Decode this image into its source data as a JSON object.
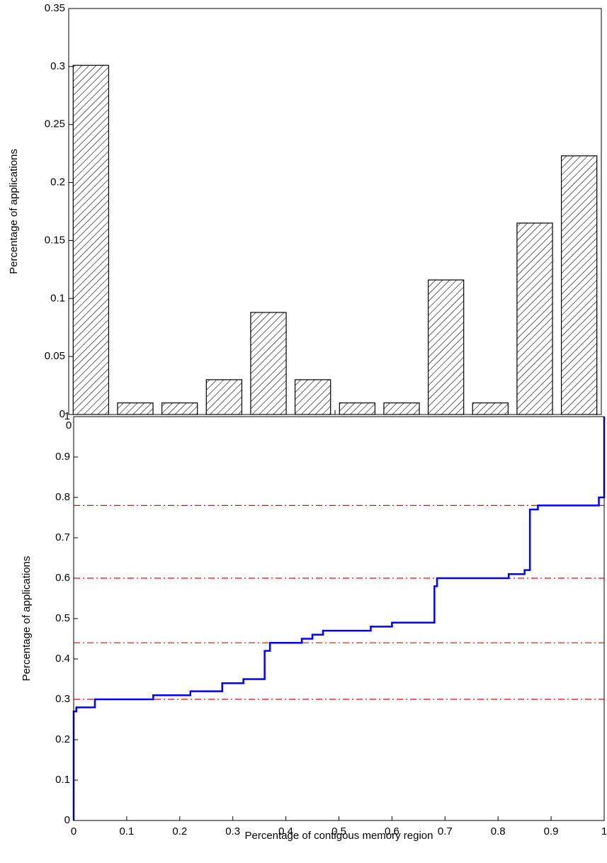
{
  "chart_data": [
    {
      "type": "bar",
      "x": [
        0.0417,
        0.125,
        0.2083,
        0.2917,
        0.375,
        0.4583,
        0.5417,
        0.625,
        0.7083,
        0.7917,
        0.875,
        0.9583
      ],
      "values": [
        0.301,
        0.01,
        0.01,
        0.03,
        0.088,
        0.03,
        0.01,
        0.01,
        0.116,
        0.01,
        0.165,
        0.223
      ],
      "color": "#000000",
      "xlabel": "Percentage of contigous memory region",
      "ylabel": "Percentage of applications",
      "xlim": [
        0,
        1
      ],
      "xticks": [
        0,
        0.1,
        0.2,
        0.3,
        0.4,
        0.5,
        0.6,
        0.7,
        0.8,
        0.9,
        1
      ],
      "ylim": [
        0,
        0.35
      ],
      "yticks": [
        0,
        0.05,
        0.1,
        0.15,
        0.2,
        0.25,
        0.3,
        0.35
      ],
      "grid": false
    },
    {
      "type": "step",
      "x": [
        0,
        0.005,
        0.04,
        0.15,
        0.22,
        0.28,
        0.32,
        0.36,
        0.37,
        0.43,
        0.45,
        0.47,
        0.56,
        0.6,
        0.68,
        0.685,
        0.82,
        0.85,
        0.86,
        0.875,
        0.99,
        1
      ],
      "values": [
        0.27,
        0.28,
        0.3,
        0.31,
        0.32,
        0.34,
        0.35,
        0.42,
        0.44,
        0.45,
        0.46,
        0.47,
        0.48,
        0.49,
        0.58,
        0.6,
        0.61,
        0.62,
        0.77,
        0.78,
        0.8,
        1
      ],
      "color": "#0000ff",
      "reference_lines": [
        0.3,
        0.44,
        0.6,
        0.78
      ],
      "reference_color": "#ff0000",
      "xlabel": "Percentage of contigous memory region",
      "ylabel": "Percentage of applications",
      "xlim": [
        0,
        1
      ],
      "xticks": [
        0,
        0.1,
        0.2,
        0.3,
        0.4,
        0.5,
        0.6,
        0.7,
        0.8,
        0.9,
        1
      ],
      "ylim": [
        0,
        1
      ],
      "yticks": [
        0,
        0.1,
        0.2,
        0.3,
        0.4,
        0.5,
        0.6,
        0.7,
        0.8,
        0.9,
        1
      ],
      "grid": false
    }
  ]
}
